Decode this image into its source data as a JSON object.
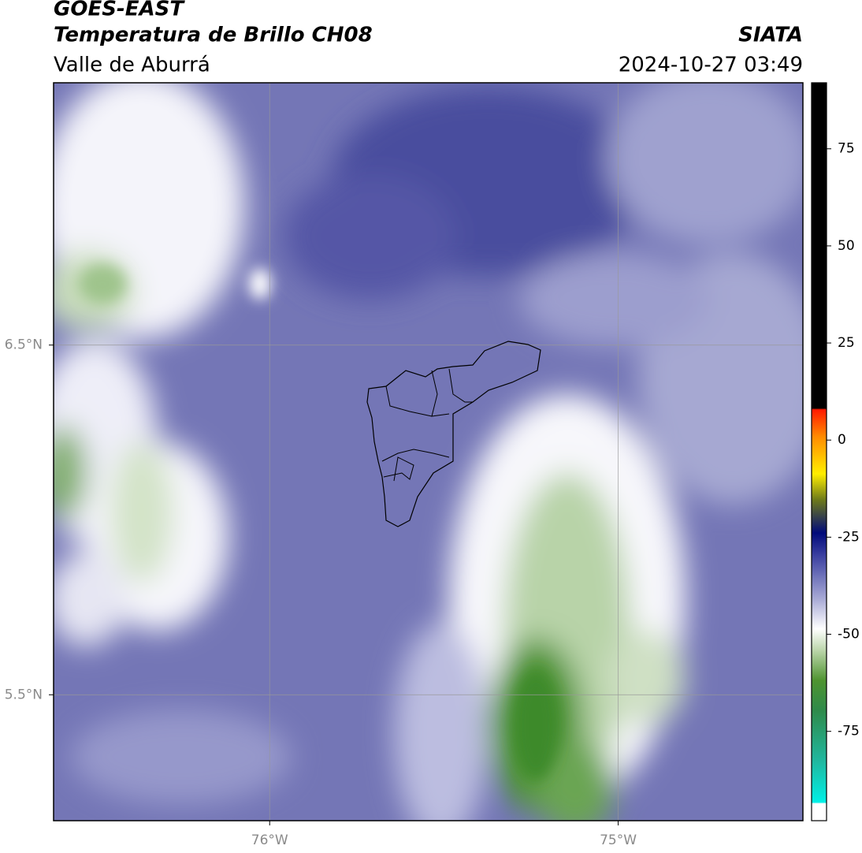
{
  "header": {
    "title": "GOES-EAST",
    "subtitle": "Temperatura de Brillo CH08",
    "region": "Valle de Aburrá",
    "source": "SIATA",
    "timestamp": "2024-10-27 03:49"
  },
  "map": {
    "xlim": [
      -76.62,
      -74.47
    ],
    "ylim": [
      5.14,
      7.25
    ],
    "xticks": [
      {
        "value": -76,
        "label": "76°W"
      },
      {
        "value": -75,
        "label": "75°W"
      }
    ],
    "yticks": [
      {
        "value": 6.5,
        "label": "6.5°N"
      },
      {
        "value": 5.5,
        "label": "5.5°N"
      }
    ],
    "grid": true
  },
  "colorbar": {
    "lim": [
      -98,
      92
    ],
    "ticks": [
      75,
      50,
      25,
      0,
      -25,
      -50,
      -75
    ]
  }
}
